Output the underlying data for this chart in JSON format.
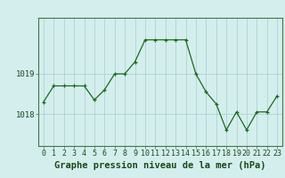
{
  "x": [
    0,
    1,
    2,
    3,
    4,
    5,
    6,
    7,
    8,
    9,
    10,
    11,
    12,
    13,
    14,
    15,
    16,
    17,
    18,
    19,
    20,
    21,
    22,
    23
  ],
  "y": [
    1018.3,
    1018.7,
    1018.7,
    1018.7,
    1018.7,
    1018.35,
    1018.6,
    1019.0,
    1019.0,
    1019.3,
    1019.85,
    1019.85,
    1019.85,
    1019.85,
    1019.85,
    1019.0,
    1018.55,
    1018.25,
    1017.6,
    1018.05,
    1017.6,
    1018.05,
    1018.05,
    1018.45
  ],
  "line_color": "#1a6b1a",
  "marker_color": "#1a6b1a",
  "bg_color": "#d4eeee",
  "grid_color": "#aacccc",
  "title": "Graphe pression niveau de la mer (hPa)",
  "yticks": [
    1018,
    1019
  ],
  "ylim": [
    1017.2,
    1020.4
  ],
  "xlim": [
    -0.5,
    23.5
  ],
  "tick_fontsize": 6.5,
  "title_fontsize": 7.5
}
